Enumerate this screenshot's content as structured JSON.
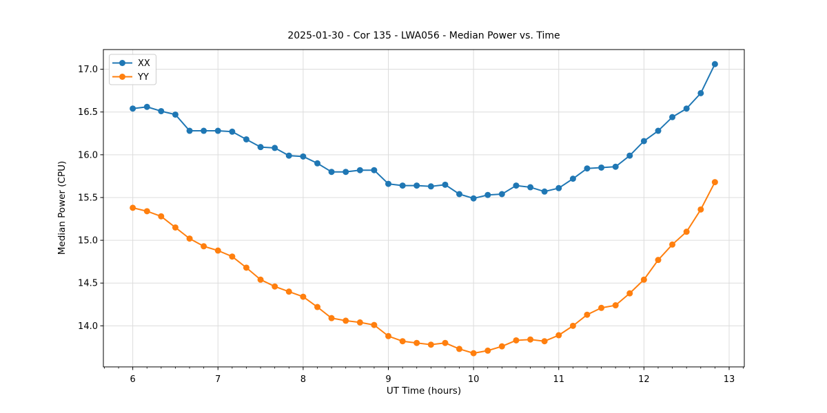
{
  "chart_data": {
    "type": "line",
    "title": "2025-01-30 - Cor 135 - LWA056 - Median Power vs. Time",
    "xlabel": "UT Time (hours)",
    "ylabel": "Median Power (CPU)",
    "xlim": [
      5.655,
      13.178
    ],
    "ylim": [
      13.52,
      17.23
    ],
    "xticks": [
      6,
      7,
      8,
      9,
      10,
      11,
      12,
      13
    ],
    "yticks": [
      14.0,
      14.5,
      15.0,
      15.5,
      16.0,
      16.5,
      17.0
    ],
    "x_minor_step": 0.1666667,
    "grid": true,
    "legend_position": "upper-left",
    "grid_color": "#dcdcdc",
    "x": [
      6.0,
      6.167,
      6.333,
      6.5,
      6.667,
      6.833,
      7.0,
      7.167,
      7.333,
      7.5,
      7.667,
      7.833,
      8.0,
      8.167,
      8.333,
      8.5,
      8.667,
      8.833,
      9.0,
      9.167,
      9.333,
      9.5,
      9.667,
      9.833,
      10.0,
      10.167,
      10.333,
      10.5,
      10.667,
      10.833,
      11.0,
      11.167,
      11.333,
      11.5,
      11.667,
      11.833,
      12.0,
      12.167,
      12.333,
      12.5,
      12.667,
      12.833
    ],
    "series": [
      {
        "name": "XX",
        "color": "#1f77b4",
        "values": [
          16.54,
          16.56,
          16.51,
          16.47,
          16.28,
          16.28,
          16.28,
          16.27,
          16.18,
          16.09,
          16.08,
          15.99,
          15.98,
          15.9,
          15.8,
          15.8,
          15.82,
          15.82,
          15.66,
          15.64,
          15.64,
          15.63,
          15.65,
          15.54,
          15.49,
          15.53,
          15.54,
          15.64,
          15.62,
          15.57,
          15.61,
          15.72,
          15.84,
          15.85,
          15.86,
          15.99,
          16.16,
          16.28,
          16.44,
          16.54,
          16.72,
          17.06
        ]
      },
      {
        "name": "YY",
        "color": "#ff7f0e",
        "values": [
          15.38,
          15.34,
          15.28,
          15.15,
          15.02,
          14.93,
          14.88,
          14.81,
          14.68,
          14.54,
          14.46,
          14.4,
          14.34,
          14.22,
          14.09,
          14.06,
          14.04,
          14.01,
          13.88,
          13.82,
          13.8,
          13.78,
          13.8,
          13.73,
          13.68,
          13.71,
          13.76,
          13.83,
          13.84,
          13.82,
          13.89,
          14.0,
          14.13,
          14.21,
          14.24,
          14.38,
          14.54,
          14.77,
          14.95,
          15.1,
          15.36,
          15.68
        ]
      }
    ]
  }
}
